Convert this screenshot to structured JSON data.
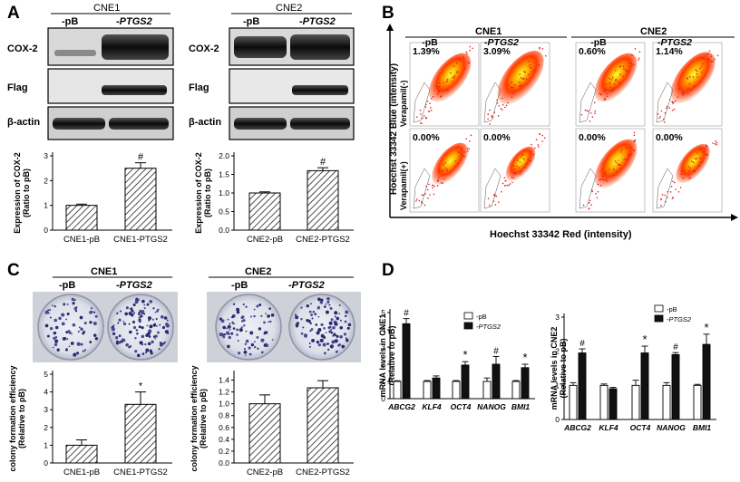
{
  "panel_letters": [
    "A",
    "B",
    "C",
    "D"
  ],
  "panelA": {
    "left": {
      "group": "CNE1",
      "lanes": [
        "-pB",
        "-PTGS2"
      ],
      "blots": [
        "COX-2",
        "Flag",
        "β-actin"
      ]
    },
    "right": {
      "group": "CNE2",
      "lanes": [
        "-pB",
        "-PTGS2"
      ],
      "blots": [
        "COX-2",
        "Flag",
        "β-actin"
      ]
    }
  },
  "panelB": {
    "col_groups": [
      "CNE1",
      "CNE2"
    ],
    "col_labels": [
      "-pB",
      "-PTGS2",
      "-pB",
      "-PTGS2"
    ],
    "row_labels": [
      "Verapamil(-)",
      "Verapamil(+)"
    ],
    "percents": [
      [
        "1.39%",
        "3.09%",
        "0.60%",
        "1.14%"
      ],
      [
        "0.00%",
        "0.00%",
        "0.00%",
        "0.00%"
      ]
    ],
    "x_axis_label": "Hoechst  33342  Red (intensity)",
    "y_axis_label": "Hoechst  33342  Blue (intensity)"
  },
  "panelC": {
    "left_group": "CNE1",
    "right_group": "CNE2",
    "lanes": [
      "-pB",
      "-PTGS2"
    ]
  },
  "colors": {
    "bar_solid": "#111111",
    "bar_open": "#ffffff",
    "flow_hot": "#ff3a00",
    "flow_core": "#ffe600"
  },
  "chart_data": [
    {
      "id": "A-left",
      "type": "bar",
      "pattern": "hatched",
      "categories": [
        "CNE1-pB",
        "CNE1-PTGS2"
      ],
      "values": [
        1.0,
        2.5
      ],
      "errors": [
        0.05,
        0.22
      ],
      "marks": [
        "",
        "#"
      ],
      "ylabel": "Expression of COX-2\n(Ratio to pB)",
      "ylim": [
        0,
        3
      ],
      "yticks": [
        0,
        1,
        2,
        3
      ],
      "yticklabels": [
        "0",
        "1",
        "2",
        "3"
      ]
    },
    {
      "id": "A-right",
      "type": "bar",
      "pattern": "hatched",
      "categories": [
        "CNE2-pB",
        "CNE2-PTGS2"
      ],
      "values": [
        1.0,
        1.6
      ],
      "errors": [
        0.03,
        0.08
      ],
      "marks": [
        "",
        "#"
      ],
      "ylabel": "Expression of COX-2\n(Ratio to pB)",
      "ylim": [
        0,
        2
      ],
      "yticks": [
        0,
        0.5,
        1,
        1.5,
        2
      ],
      "yticklabels": [
        "0.0",
        "0.5",
        "1.0",
        "1.5",
        "2.0"
      ]
    },
    {
      "id": "C-left",
      "type": "bar",
      "pattern": "hatched",
      "categories": [
        "CNE1-pB",
        "CNE1-PTGS2"
      ],
      "values": [
        1.0,
        3.3
      ],
      "errors": [
        0.3,
        0.7
      ],
      "marks": [
        "",
        "*"
      ],
      "ylabel": "colony formation efficiency\n(Relative to pB)",
      "ylim": [
        0,
        5
      ],
      "yticks": [
        0,
        1,
        2,
        3,
        4,
        5
      ],
      "yticklabels": [
        "0",
        "1",
        "2",
        "3",
        "4",
        "5"
      ]
    },
    {
      "id": "C-right",
      "type": "bar",
      "pattern": "hatched",
      "categories": [
        "CNE2-pB",
        "CNE2-PTGS2"
      ],
      "values": [
        1.0,
        1.27
      ],
      "errors": [
        0.15,
        0.12
      ],
      "marks": [
        "",
        ""
      ],
      "ylabel": "colony formation efficiency\n(Relative to pB)",
      "ylim": [
        0,
        1.5
      ],
      "yticks": [
        0,
        0.2,
        0.4,
        0.6,
        0.8,
        1.0,
        1.2,
        1.4
      ],
      "yticklabels": [
        "0.0",
        "0.2",
        "0.4",
        "0.6",
        "0.8",
        "1.0",
        "1.2",
        "1.4"
      ]
    },
    {
      "id": "D-left",
      "type": "bar",
      "grouped": true,
      "categories": [
        "ABCG2",
        "KLF4",
        "OCT4",
        "NANOG",
        "BMI1"
      ],
      "series": [
        {
          "name": "-pB",
          "values": [
            1.0,
            1.0,
            1.0,
            1.0,
            1.0
          ],
          "errors": [
            0.04,
            0.05,
            0.05,
            0.2,
            0.05
          ]
        },
        {
          "name": "-PTGS2",
          "values": [
            4.35,
            1.2,
            1.95,
            2.0,
            1.8
          ],
          "errors": [
            0.3,
            0.12,
            0.2,
            0.45,
            0.2
          ]
        }
      ],
      "marks": [
        "#",
        "",
        "*",
        "#",
        "*"
      ],
      "ylabel": "mRNA levels in CNE1\n(Relative to pB)",
      "ylim": [
        0,
        5
      ],
      "yticks": [
        0,
        1,
        2,
        3,
        4,
        5
      ],
      "yticklabels": [
        "0",
        "1",
        "2",
        "3",
        "4",
        "5"
      ]
    },
    {
      "id": "D-right",
      "type": "bar",
      "grouped": true,
      "categories": [
        "ABCG2",
        "KLF4",
        "OCT4",
        "NANOG",
        "BMI1"
      ],
      "series": [
        {
          "name": "-pB",
          "values": [
            1.0,
            1.0,
            1.0,
            1.0,
            1.0
          ],
          "errors": [
            0.08,
            0.04,
            0.15,
            0.08,
            0.03
          ]
        },
        {
          "name": "-PTGS2",
          "values": [
            1.95,
            0.9,
            1.95,
            1.9,
            2.2
          ],
          "errors": [
            0.12,
            0.04,
            0.2,
            0.06,
            0.3
          ]
        }
      ],
      "marks": [
        "#",
        "",
        "*",
        "#",
        "*"
      ],
      "ylabel": "mRNA levels in CNE2\n(Relative to pB)",
      "ylim": [
        0,
        3
      ],
      "yticks": [
        0,
        1,
        2,
        3
      ],
      "yticklabels": [
        "0",
        "1",
        "2",
        "3"
      ]
    }
  ]
}
